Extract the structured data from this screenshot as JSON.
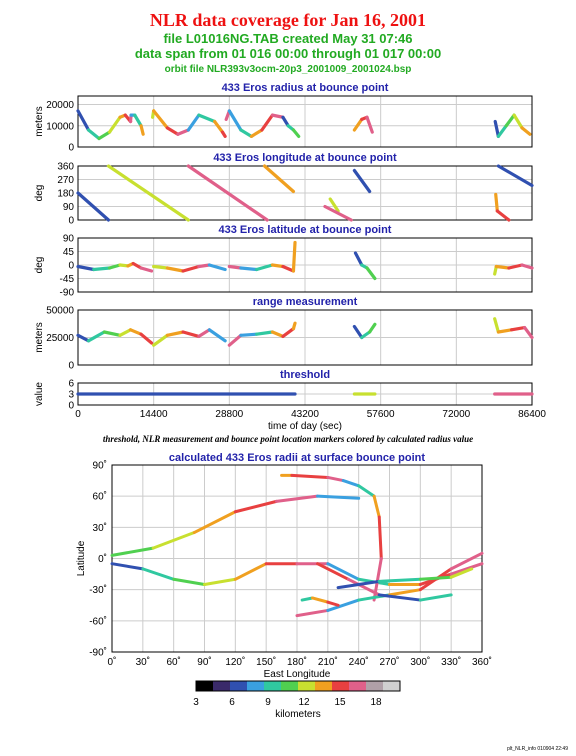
{
  "header": {
    "title": "NLR data coverage for Jan 16, 2001",
    "line1": "file L01016NG.TAB created May 31 07:46",
    "line2": "data span from 01 016 00:00 through 01 017 00:00",
    "line3": "orbit file NLR393v3ocm-20p3_2001009_2001024.bsp"
  },
  "caption": "threshold, NLR measurement and bounce point location markers colored by calculated radius value",
  "footer": "plt_NLR_info 010904 22:49",
  "colors": {
    "title": "#ee1111",
    "subtitle": "#22aa22",
    "panel_title": "#2222aa",
    "colorbar": [
      "#000000",
      "#3a2a6a",
      "#3050b0",
      "#3aa0e0",
      "#30c8a0",
      "#50d050",
      "#c8e030",
      "#f0a020",
      "#e84040",
      "#e0608a",
      "#b0a0a8",
      "#d0d0d0"
    ]
  },
  "chart_data": [
    {
      "type": "line",
      "title": "433 Eros radius at bounce point",
      "ylabel": "meters",
      "xlabel": "",
      "xlim": [
        0,
        86400
      ],
      "ylim": [
        0,
        24000
      ],
      "yticks": [
        "0",
        "10000",
        "20000"
      ],
      "xticks": [
        "0",
        "14400",
        "28800",
        "43200",
        "57600",
        "72000",
        "86400"
      ],
      "grid": true,
      "series": [
        {
          "x": [
            0,
            2000,
            4000,
            6000,
            8000,
            9000,
            10000,
            10100,
            10800,
            12000,
            12400
          ],
          "y": [
            17000,
            8000,
            4000,
            7000,
            14000,
            15000,
            12000,
            15000,
            15000,
            10000,
            6000
          ]
        },
        {
          "x": [
            14200,
            14400,
            17000,
            19000,
            21000,
            23000,
            26000,
            27500,
            28000
          ],
          "y": [
            14000,
            17000,
            9000,
            6000,
            8000,
            15000,
            12000,
            7000,
            5000
          ]
        },
        {
          "x": [
            28200,
            28800,
            31000,
            33000,
            35000,
            37000,
            39000,
            40000,
            41000,
            42000
          ],
          "y": [
            13000,
            17000,
            8000,
            5000,
            8000,
            15000,
            14000,
            10000,
            8000,
            5000
          ]
        },
        {
          "x": [
            52600,
            54000,
            55000,
            56000
          ],
          "y": [
            8000,
            13000,
            14000,
            7000
          ]
        },
        {
          "x": [
            79400,
            80000,
            81500,
            83000,
            84500,
            86000
          ],
          "y": [
            12000,
            5000,
            10000,
            15000,
            9000,
            6000
          ]
        }
      ]
    },
    {
      "type": "line",
      "title": "433 Eros longitude at bounce point",
      "ylabel": "deg",
      "xlabel": "",
      "xlim": [
        0,
        86400
      ],
      "ylim": [
        0,
        360
      ],
      "yticks": [
        "0",
        "90",
        "180",
        "270",
        "360"
      ],
      "xticks": [
        "0",
        "14400",
        "28800",
        "43200",
        "57600",
        "72000",
        "86400"
      ],
      "grid": true,
      "series": [
        {
          "x": [
            0,
            5800
          ],
          "y": [
            180,
            0
          ]
        },
        {
          "x": [
            5800,
            21000
          ],
          "y": [
            360,
            0
          ]
        },
        {
          "x": [
            21000,
            36000
          ],
          "y": [
            360,
            0
          ]
        },
        {
          "x": [
            35500,
            41000
          ],
          "y": [
            360,
            190
          ]
        },
        {
          "x": [
            52600,
            55500
          ],
          "y": [
            330,
            190
          ]
        },
        {
          "x": [
            48000,
            49500
          ],
          "y": [
            140,
            60
          ]
        },
        {
          "x": [
            47000,
            52000
          ],
          "y": [
            90,
            0
          ]
        },
        {
          "x": [
            79500,
            79800,
            82000
          ],
          "y": [
            170,
            60,
            0
          ]
        },
        {
          "x": [
            80000,
            86400
          ],
          "y": [
            360,
            230
          ]
        }
      ]
    },
    {
      "type": "line",
      "title": "433 Eros latitude at bounce point",
      "ylabel": "deg",
      "xlabel": "",
      "xlim": [
        0,
        86400
      ],
      "ylim": [
        -90,
        90
      ],
      "yticks": [
        "-90",
        "-45",
        "0",
        "45",
        "90"
      ],
      "xticks": [
        "0",
        "14400",
        "28800",
        "43200",
        "57600",
        "72000",
        "86400"
      ],
      "grid": true,
      "series": [
        {
          "x": [
            0,
            3000,
            6000,
            8000,
            9500,
            10500,
            12000,
            14000
          ],
          "y": [
            -5,
            -15,
            -10,
            0,
            -3,
            5,
            -10,
            -20
          ]
        },
        {
          "x": [
            14400,
            17000,
            20000,
            23000,
            25000,
            28000
          ],
          "y": [
            -5,
            -10,
            -20,
            -5,
            0,
            -15
          ]
        },
        {
          "x": [
            28800,
            31000,
            34000,
            37000,
            39000,
            41000
          ],
          "y": [
            -5,
            -10,
            -15,
            0,
            -5,
            -20
          ]
        },
        {
          "x": [
            41000,
            41300
          ],
          "y": [
            -20,
            75
          ]
        },
        {
          "x": [
            52800,
            54000,
            55000,
            56500
          ],
          "y": [
            40,
            0,
            -10,
            -45
          ]
        },
        {
          "x": [
            79300,
            79600,
            82000,
            84500,
            86400
          ],
          "y": [
            -30,
            -5,
            -10,
            0,
            -10
          ]
        }
      ]
    },
    {
      "type": "line",
      "title": "range measurement",
      "ylabel": "meters",
      "xlabel": "",
      "xlim": [
        0,
        86400
      ],
      "ylim": [
        0,
        50000
      ],
      "yticks": [
        "0",
        "25000",
        "50000"
      ],
      "xticks": [
        "0",
        "14400",
        "28800",
        "43200",
        "57600",
        "72000",
        "86400"
      ],
      "grid": true,
      "series": [
        {
          "x": [
            0,
            2000,
            5000,
            8000,
            10000,
            12000,
            14000
          ],
          "y": [
            27000,
            22000,
            30000,
            27000,
            32000,
            28000,
            20000
          ]
        },
        {
          "x": [
            14400,
            17000,
            20000,
            23000,
            25000,
            28000
          ],
          "y": [
            18000,
            27000,
            30000,
            26000,
            32000,
            22000
          ]
        },
        {
          "x": [
            28800,
            31000,
            34000,
            37000,
            39000,
            41000
          ],
          "y": [
            18000,
            27000,
            28000,
            30000,
            26000,
            33000
          ]
        },
        {
          "x": [
            41000,
            41300
          ],
          "y": [
            33000,
            38000
          ]
        },
        {
          "x": [
            52600,
            54000,
            55500,
            56500
          ],
          "y": [
            35000,
            25000,
            30000,
            37000
          ]
        },
        {
          "x": [
            79300,
            80000,
            82500,
            85000,
            86400
          ],
          "y": [
            42000,
            30000,
            32000,
            34000,
            25000
          ]
        }
      ]
    },
    {
      "type": "scatter",
      "title": "threshold",
      "ylabel": "value",
      "xlabel": "time of day (sec)",
      "xlim": [
        0,
        86400
      ],
      "ylim": [
        0,
        6
      ],
      "yticks": [
        "0",
        "3",
        "6"
      ],
      "xticks": [
        "0",
        "14400",
        "28800",
        "43200",
        "57600",
        "72000",
        "86400"
      ],
      "grid": true,
      "series": [
        {
          "x": [
            0,
            41300
          ],
          "y": [
            3,
            3
          ]
        },
        {
          "x": [
            52600,
            56500
          ],
          "y": [
            3,
            3
          ]
        },
        {
          "x": [
            79300,
            86400
          ],
          "y": [
            3,
            3
          ]
        }
      ]
    },
    {
      "type": "line",
      "title": "calculated 433 Eros radii at surface bounce point",
      "xlabel": "East Longitude",
      "ylabel": "Latitude",
      "xlim": [
        0,
        360
      ],
      "ylim": [
        -90,
        90
      ],
      "xticks": [
        "0˚",
        "30˚",
        "60˚",
        "90˚",
        "120˚",
        "150˚",
        "180˚",
        "210˚",
        "240˚",
        "270˚",
        "300˚",
        "330˚",
        "360˚"
      ],
      "yticks": [
        "-90˚",
        "-60˚",
        "-30˚",
        "0˚",
        "30˚",
        "60˚",
        "90˚"
      ],
      "grid": true,
      "colorbar": {
        "label": "kilometers",
        "min": 3,
        "max": 20,
        "ticks": [
          "3",
          "6",
          "9",
          "12",
          "15",
          "18"
        ]
      },
      "series": [
        {
          "x": [
            0,
            30,
            60,
            90,
            120,
            150,
            180,
            210,
            240,
            270,
            300,
            330,
            360
          ],
          "y": [
            -5,
            -10,
            -20,
            -25,
            -20,
            -5,
            -5,
            -5,
            -20,
            -25,
            -25,
            -15,
            -5
          ]
        },
        {
          "x": [
            0,
            40,
            80,
            120,
            160,
            200,
            240
          ],
          "y": [
            3,
            10,
            25,
            45,
            55,
            60,
            58
          ]
        },
        {
          "x": [
            165,
            175,
            210,
            225,
            240,
            255,
            260,
            262,
            255
          ],
          "y": [
            80,
            80,
            78,
            75,
            70,
            60,
            40,
            0,
            -40
          ]
        },
        {
          "x": [
            180,
            210,
            240,
            270,
            300,
            330,
            360
          ],
          "y": [
            -55,
            -50,
            -40,
            -35,
            -30,
            -10,
            5
          ]
        },
        {
          "x": [
            185,
            195,
            210,
            220
          ],
          "y": [
            -40,
            -38,
            -42,
            -45
          ]
        },
        {
          "x": [
            200,
            230,
            260,
            300,
            330
          ],
          "y": [
            -5,
            -20,
            -35,
            -40,
            -35
          ]
        },
        {
          "x": [
            220,
            260,
            300,
            330,
            350
          ],
          "y": [
            -28,
            -22,
            -20,
            -18,
            -10
          ]
        }
      ]
    }
  ]
}
